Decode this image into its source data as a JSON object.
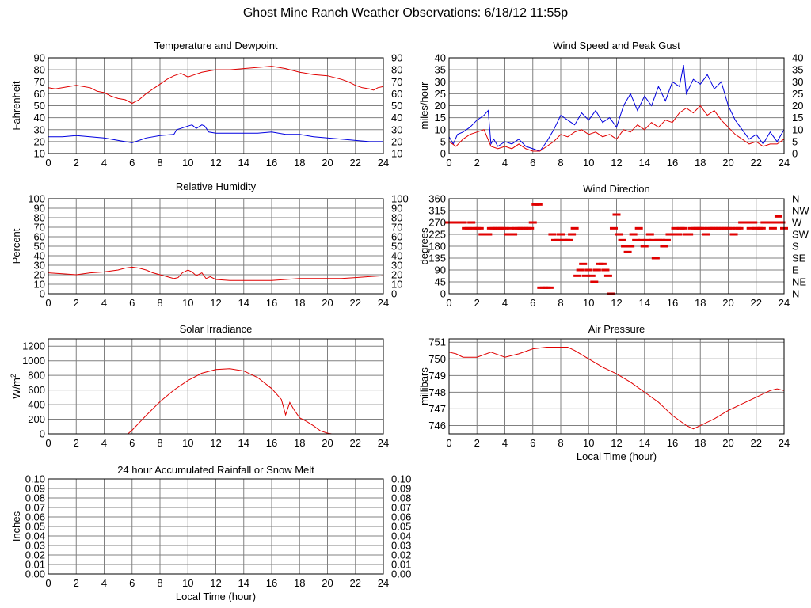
{
  "title": "Ghost Mine Ranch Weather Observations: 6/18/12 11:55p",
  "colors": {
    "red": "#e00000",
    "blue": "#0000e0",
    "grid": "#808080",
    "frame": "#000000"
  },
  "chart_data": [
    {
      "id": "temp",
      "type": "line",
      "title": "Temperature and Dewpoint",
      "ylabel": "Fahrenheit",
      "xlabel": "",
      "xlim": [
        0,
        24
      ],
      "ylim": [
        10,
        90
      ],
      "xticks": [
        0,
        2,
        4,
        6,
        8,
        10,
        12,
        14,
        16,
        18,
        20,
        22,
        24
      ],
      "yticks": [
        10,
        20,
        30,
        40,
        50,
        60,
        70,
        80,
        90
      ],
      "right_ticks": [
        "10",
        "20",
        "30",
        "40",
        "50",
        "60",
        "70",
        "80",
        "90"
      ],
      "grid": true,
      "series": [
        {
          "color": "red",
          "style": "line",
          "x": [
            0,
            0.5,
            1,
            2,
            3,
            3.5,
            4,
            4.5,
            5,
            5.5,
            6,
            6.5,
            7,
            7.5,
            8,
            8.5,
            9,
            9.5,
            10,
            10.5,
            11,
            11.5,
            12,
            13,
            14,
            15,
            16,
            16.5,
            17,
            18,
            19,
            20,
            21,
            21.5,
            22,
            22.5,
            23,
            23.3,
            23.6,
            24
          ],
          "y": [
            65,
            64,
            65,
            67,
            65,
            62,
            61,
            58,
            56,
            55,
            52,
            55,
            60,
            64,
            68,
            72,
            75,
            77,
            74,
            76,
            78,
            79,
            80,
            80,
            81,
            82,
            83,
            82,
            81,
            78,
            76,
            75,
            72,
            70,
            67,
            65,
            64,
            63,
            65,
            66
          ]
        },
        {
          "color": "blue",
          "style": "line",
          "x": [
            0,
            1,
            2,
            3,
            4,
            5,
            5.5,
            6,
            6.5,
            7,
            8,
            9,
            9.2,
            9.5,
            10,
            10.3,
            10.6,
            11,
            11.2,
            11.5,
            12,
            13,
            14,
            15,
            16,
            17,
            18,
            19,
            20,
            21,
            22,
            23,
            24
          ],
          "y": [
            24,
            24,
            25,
            24,
            23,
            21,
            20,
            19,
            21,
            23,
            25,
            26,
            30,
            31,
            33,
            34,
            31,
            34,
            33,
            28,
            27,
            27,
            27,
            27,
            28,
            26,
            26,
            24,
            23,
            22,
            21,
            20,
            20
          ]
        }
      ]
    },
    {
      "id": "wind",
      "type": "line",
      "title": "Wind Speed and Peak Gust",
      "ylabel": "miles/hour",
      "xlabel": "",
      "xlim": [
        0,
        24
      ],
      "ylim": [
        0,
        40
      ],
      "xticks": [
        0,
        2,
        4,
        6,
        8,
        10,
        12,
        14,
        16,
        18,
        20,
        22,
        24
      ],
      "yticks": [
        0,
        5,
        10,
        15,
        20,
        25,
        30,
        35,
        40
      ],
      "right_ticks": [
        "0",
        "5",
        "10",
        "15",
        "20",
        "25",
        "30",
        "35",
        "40"
      ],
      "grid": true,
      "series": [
        {
          "color": "blue",
          "style": "line",
          "x": [
            0,
            0.3,
            0.6,
            1,
            1.5,
            2,
            2.5,
            2.8,
            3,
            3.2,
            3.5,
            4,
            4.5,
            5,
            5.5,
            6,
            6.5,
            7,
            7.5,
            8,
            8.5,
            9,
            9.5,
            10,
            10.5,
            11,
            11.5,
            12,
            12.5,
            13,
            13.5,
            14,
            14.5,
            15,
            15.5,
            16,
            16.5,
            16.8,
            17,
            17.5,
            18,
            18.5,
            19,
            19.5,
            20,
            20.5,
            21,
            21.5,
            22,
            22.5,
            23,
            23.5,
            24
          ],
          "y": [
            7,
            4,
            8,
            9,
            11,
            14,
            16,
            18,
            4,
            6,
            3,
            5,
            4,
            6,
            3,
            2,
            1,
            5,
            10,
            16,
            14,
            12,
            17,
            14,
            18,
            13,
            15,
            11,
            20,
            25,
            18,
            24,
            20,
            28,
            22,
            30,
            28,
            37,
            25,
            31,
            29,
            33,
            27,
            30,
            20,
            14,
            10,
            6,
            8,
            4,
            9,
            5,
            10
          ]
        },
        {
          "color": "red",
          "style": "line",
          "x": [
            0,
            0.5,
            1,
            1.5,
            2,
            2.5,
            3,
            3.5,
            4,
            4.5,
            5,
            5.5,
            6,
            6.5,
            7,
            7.5,
            8,
            8.5,
            9,
            9.5,
            10,
            10.5,
            11,
            11.5,
            12,
            12.5,
            13,
            13.5,
            14,
            14.5,
            15,
            15.5,
            16,
            16.5,
            17,
            17.5,
            18,
            18.5,
            19,
            19.5,
            20,
            20.5,
            21,
            21.5,
            22,
            22.5,
            23,
            23.5,
            24
          ],
          "y": [
            5,
            3,
            6,
            8,
            9,
            10,
            3,
            2,
            3,
            2,
            4,
            2,
            1,
            1,
            3,
            5,
            8,
            7,
            9,
            10,
            8,
            9,
            7,
            8,
            6,
            10,
            9,
            12,
            10,
            13,
            11,
            14,
            13,
            17,
            19,
            17,
            20,
            16,
            18,
            14,
            11,
            8,
            6,
            4,
            5,
            3,
            4,
            4,
            6
          ]
        }
      ]
    },
    {
      "id": "rh",
      "type": "line",
      "title": "Relative Humidity",
      "ylabel": "Percent",
      "xlabel": "",
      "xlim": [
        0,
        24
      ],
      "ylim": [
        0,
        100
      ],
      "xticks": [
        0,
        2,
        4,
        6,
        8,
        10,
        12,
        14,
        16,
        18,
        20,
        22,
        24
      ],
      "yticks": [
        0,
        10,
        20,
        30,
        40,
        50,
        60,
        70,
        80,
        90,
        100
      ],
      "right_ticks": [
        "0",
        "10",
        "20",
        "30",
        "40",
        "50",
        "60",
        "70",
        "80",
        "90",
        "100"
      ],
      "grid": true,
      "series": [
        {
          "color": "red",
          "style": "line",
          "x": [
            0,
            1,
            2,
            3,
            4,
            5,
            5.5,
            6,
            6.5,
            7,
            7.5,
            8,
            8.5,
            9,
            9.3,
            9.6,
            10,
            10.3,
            10.6,
            11,
            11.3,
            11.6,
            12,
            13,
            14,
            15,
            16,
            17,
            18,
            19,
            20,
            21,
            22,
            23,
            24
          ],
          "y": [
            22,
            21,
            20,
            22,
            23,
            25,
            27,
            28,
            27,
            25,
            22,
            20,
            18,
            16,
            17,
            22,
            25,
            23,
            19,
            22,
            16,
            18,
            15,
            14,
            14,
            14,
            14,
            15,
            16,
            16,
            16,
            16,
            17,
            18,
            19
          ]
        }
      ]
    },
    {
      "id": "dir",
      "type": "scatter",
      "title": "Wind Direction",
      "ylabel": "degrees",
      "xlabel": "",
      "xlim": [
        0,
        24
      ],
      "ylim": [
        0,
        360
      ],
      "xticks": [
        0,
        2,
        4,
        6,
        8,
        10,
        12,
        14,
        16,
        18,
        20,
        22,
        24
      ],
      "yticks": [
        0,
        45,
        90,
        135,
        180,
        225,
        270,
        315,
        360
      ],
      "right_ticks": [
        "N",
        "NE",
        "E",
        "SE",
        "S",
        "SW",
        "W",
        "NW",
        "N"
      ],
      "grid": true,
      "series": [
        {
          "color": "red",
          "style": "markers",
          "x": [
            0,
            0.2,
            0.4,
            0.6,
            0.8,
            1,
            1.2,
            1.4,
            1.6,
            1.8,
            2,
            2.2,
            2.4,
            2.6,
            2.8,
            3,
            3.2,
            3.4,
            3.6,
            3.8,
            4,
            4.2,
            4.4,
            4.6,
            4.8,
            5,
            5.2,
            5.4,
            5.6,
            5.8,
            6,
            6.2,
            6.4,
            6.6,
            6.8,
            7,
            7.2,
            7.4,
            7.6,
            7.8,
            8,
            8.2,
            8.4,
            8.6,
            8.8,
            9,
            9.2,
            9.4,
            9.6,
            9.8,
            10,
            10.2,
            10.4,
            10.6,
            10.8,
            11,
            11.2,
            11.4,
            11.6,
            11.8,
            12,
            12.2,
            12.4,
            12.6,
            12.8,
            13,
            13.2,
            13.4,
            13.6,
            13.8,
            14,
            14.2,
            14.4,
            14.6,
            14.8,
            15,
            15.2,
            15.4,
            15.6,
            15.8,
            16,
            16.2,
            16.4,
            16.6,
            16.8,
            17,
            17.2,
            17.4,
            17.6,
            17.8,
            18,
            18.2,
            18.4,
            18.6,
            18.8,
            19,
            19.2,
            19.4,
            19.6,
            19.8,
            20,
            20.2,
            20.4,
            20.6,
            20.8,
            21,
            21.2,
            21.4,
            21.6,
            21.8,
            22,
            22.2,
            22.4,
            22.6,
            22.8,
            23,
            23.2,
            23.4,
            23.6,
            23.8,
            24
          ],
          "y": [
            270,
            270,
            270,
            270,
            270,
            270,
            248,
            248,
            270,
            248,
            248,
            248,
            225,
            225,
            225,
            248,
            248,
            248,
            248,
            248,
            248,
            225,
            248,
            225,
            248,
            248,
            248,
            248,
            248,
            248,
            270,
            338,
            338,
            23,
            23,
            23,
            23,
            225,
            203,
            203,
            225,
            203,
            203,
            203,
            225,
            248,
            68,
            90,
            113,
            68,
            90,
            68,
            45,
            90,
            113,
            113,
            90,
            68,
            0,
            248,
            300,
            225,
            203,
            180,
            158,
            180,
            225,
            203,
            248,
            203,
            180,
            203,
            225,
            203,
            135,
            203,
            203,
            180,
            203,
            225,
            225,
            248,
            225,
            248,
            248,
            225,
            225,
            248,
            248,
            248,
            248,
            248,
            225,
            248,
            248,
            248,
            248,
            248,
            248,
            248,
            248,
            248,
            225,
            248,
            248,
            270,
            270,
            270,
            248,
            270,
            248,
            248,
            248,
            270,
            270,
            270,
            248,
            270,
            293,
            270,
            248
          ]
        }
      ]
    },
    {
      "id": "solar",
      "type": "line",
      "title": "Solar Irradiance",
      "ylabel": "W/m",
      "ylabel_sup": "2",
      "xlabel": "",
      "xlim": [
        0,
        24
      ],
      "ylim": [
        0,
        1300
      ],
      "xticks": [
        0,
        2,
        4,
        6,
        8,
        10,
        12,
        14,
        16,
        18,
        20,
        22,
        24
      ],
      "yticks": [
        0,
        200,
        400,
        600,
        800,
        1000,
        1200
      ],
      "right_ticks": [],
      "grid": true,
      "series": [
        {
          "color": "red",
          "style": "line",
          "x": [
            0,
            5.7,
            6,
            6.5,
            7,
            8,
            9,
            10,
            11,
            12,
            13,
            14,
            15,
            16,
            16.7,
            17,
            17.3,
            17.6,
            18,
            18.5,
            19,
            19.5,
            20,
            20.3,
            24
          ],
          "y": [
            0,
            0,
            50,
            150,
            250,
            440,
            600,
            730,
            830,
            880,
            890,
            860,
            770,
            620,
            470,
            260,
            430,
            330,
            220,
            170,
            110,
            40,
            10,
            0,
            0
          ]
        }
      ]
    },
    {
      "id": "pressure",
      "type": "line",
      "title": "Air Pressure",
      "ylabel": "millibars",
      "xlabel": "Local Time (hour)",
      "xlim": [
        0,
        24
      ],
      "ylim": [
        745.5,
        751.2
      ],
      "xticks": [
        0,
        2,
        4,
        6,
        8,
        10,
        12,
        14,
        16,
        18,
        20,
        22,
        24
      ],
      "yticks": [
        746,
        747,
        748,
        749,
        750,
        751
      ],
      "right_ticks": [],
      "grid": true,
      "series": [
        {
          "color": "red",
          "style": "line",
          "x": [
            0,
            0.5,
            1,
            2,
            3,
            4,
            5,
            6,
            7,
            8,
            8.5,
            9,
            10,
            11,
            12,
            13,
            14,
            15,
            16,
            17,
            17.5,
            18,
            19,
            20,
            21,
            22,
            23,
            23.5,
            24
          ],
          "y": [
            750.4,
            750.3,
            750.1,
            750.1,
            750.4,
            750.1,
            750.3,
            750.6,
            750.7,
            750.7,
            750.7,
            750.5,
            750.0,
            749.5,
            749.1,
            748.6,
            748.0,
            747.4,
            746.6,
            746.0,
            745.8,
            746.0,
            746.4,
            746.9,
            747.3,
            747.7,
            748.1,
            748.2,
            748.1
          ]
        }
      ]
    },
    {
      "id": "rain",
      "type": "line",
      "title": "24 hour Accumulated Rainfall or Snow Melt",
      "ylabel": "Inches",
      "xlabel": "Local Time (hour)",
      "xlim": [
        0,
        24
      ],
      "ylim": [
        0,
        0.1
      ],
      "xticks": [
        0,
        2,
        4,
        6,
        8,
        10,
        12,
        14,
        16,
        18,
        20,
        22,
        24
      ],
      "yticks": [
        0,
        0.01,
        0.02,
        0.03,
        0.04,
        0.05,
        0.06,
        0.07,
        0.08,
        0.09,
        0.1
      ],
      "ytick_labels": [
        "0.00",
        "0.01",
        "0.02",
        "0.03",
        "0.04",
        "0.05",
        "0.06",
        "0.07",
        "0.08",
        "0.09",
        "0.10"
      ],
      "right_ticks": [
        "0.00",
        "0.01",
        "0.02",
        "0.03",
        "0.04",
        "0.05",
        "0.06",
        "0.07",
        "0.08",
        "0.09",
        "0.10"
      ],
      "grid": true,
      "series": [
        {
          "color": "red",
          "style": "line",
          "x": [
            0,
            24
          ],
          "y": [
            0,
            0
          ]
        }
      ]
    }
  ]
}
